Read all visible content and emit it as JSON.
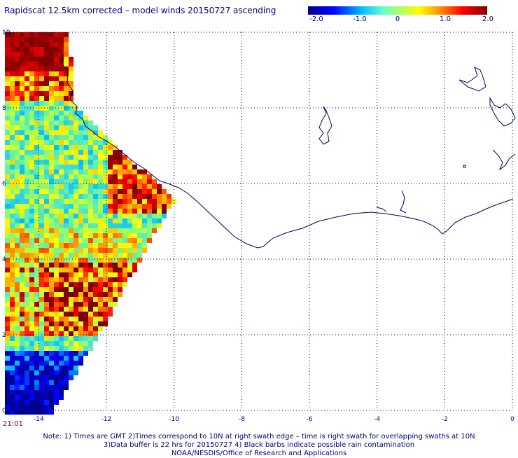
{
  "title": "Rapidscat 12.5km corrected – model winds 20150727 ascending",
  "colorbar": {
    "labels": [
      "-2.0",
      "-1.0",
      "0",
      "1.0",
      "2.0"
    ],
    "values": [
      -2.0,
      -1.0,
      0,
      1.0,
      2.0
    ],
    "colors": [
      "#00008f",
      "#00bfff",
      "#66ff99",
      "#ffff00",
      "#ff0000",
      "#7f0000"
    ]
  },
  "axes": {
    "x_ticks": [
      "-14",
      "-12",
      "-10",
      "-8",
      "-6",
      "-4",
      "-2",
      "0"
    ],
    "y_ticks": [
      "0",
      "2",
      "4",
      "6",
      "8",
      "10"
    ]
  },
  "time_label": "21:01",
  "notes": {
    "line1": "Note: 1) Times are GMT 2)Times correspond to 10N at right swath edge – time is right swath for overlapping swaths at 10N",
    "line2": "3)Data buffer is 22 hrs for 20150727 4) Black barbs indicate possible rain contamination",
    "line3": "NOAA/NESDIS/Office of Research and Applications"
  },
  "map_data": {
    "lon_range": [
      -15,
      0
    ],
    "lat_range": [
      0,
      10
    ],
    "description_free": true
  }
}
